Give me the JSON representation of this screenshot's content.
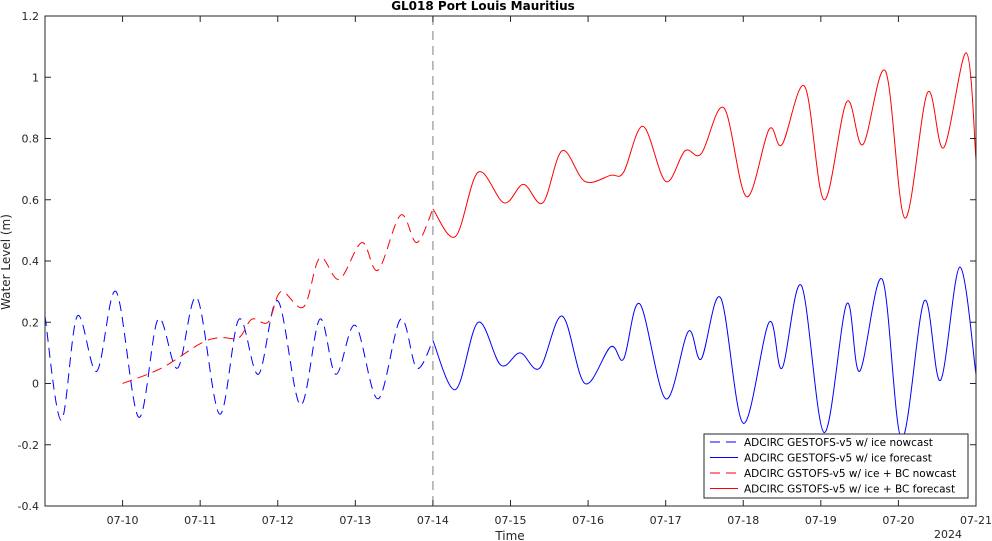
{
  "chart_data": {
    "type": "line",
    "title": "GL018 Port Louis Mauritius",
    "xlabel": "Time",
    "ylabel": "Water Level (m)",
    "year_label": "2024",
    "xlim": [
      "07-09 00:00",
      "07-21 00:00"
    ],
    "ylim": [
      -0.4,
      1.2
    ],
    "x_ticks": [
      "07-10",
      "07-11",
      "07-12",
      "07-13",
      "07-14",
      "07-15",
      "07-16",
      "07-17",
      "07-18",
      "07-19",
      "07-20",
      "07-21"
    ],
    "y_ticks": [
      "-0.4",
      "-0.2",
      "0",
      "0.2",
      "0.4",
      "0.6",
      "0.8",
      "1",
      "1.2"
    ],
    "nowcast_forecast_divider": "07-14 00:00",
    "grid": false,
    "legend_position": "bottom-right",
    "colors": {
      "blue": "#0000ff",
      "red": "#ff0000",
      "divider": "#808080",
      "axes": "#262626"
    },
    "series": [
      {
        "name": "ADCIRC GESTOFS-v5 w/ ice nowcast",
        "color": "#0000ff",
        "dash": "dashed",
        "points": [
          [
            "07-09 00:00",
            0.22
          ],
          [
            "07-09 05:00",
            -0.12
          ],
          [
            "07-09 10:00",
            0.22
          ],
          [
            "07-09 16:00",
            0.04
          ],
          [
            "07-09 22:00",
            0.3
          ],
          [
            "07-10 05:00",
            -0.11
          ],
          [
            "07-10 11:00",
            0.21
          ],
          [
            "07-10 17:00",
            0.05
          ],
          [
            "07-10 23:00",
            0.28
          ],
          [
            "07-11 06:00",
            -0.1
          ],
          [
            "07-11 12:00",
            0.21
          ],
          [
            "07-11 18:00",
            0.03
          ],
          [
            "07-12 00:00",
            0.27
          ],
          [
            "07-12 07:00",
            -0.07
          ],
          [
            "07-12 13:00",
            0.21
          ],
          [
            "07-12 18:00",
            0.03
          ],
          [
            "07-13 00:00",
            0.19
          ],
          [
            "07-13 07:00",
            -0.05
          ],
          [
            "07-13 14:00",
            0.21
          ],
          [
            "07-13 19:00",
            0.05
          ],
          [
            "07-14 00:00",
            0.14
          ]
        ]
      },
      {
        "name": "ADCIRC GESTOFS-v5 w/ ice forecast",
        "color": "#0000ff",
        "dash": "solid",
        "points": [
          [
            "07-14 00:00",
            0.14
          ],
          [
            "07-14 07:00",
            -0.02
          ],
          [
            "07-14 14:00",
            0.2
          ],
          [
            "07-14 21:00",
            0.06
          ],
          [
            "07-15 03:00",
            0.1
          ],
          [
            "07-15 09:00",
            0.05
          ],
          [
            "07-15 16:00",
            0.22
          ],
          [
            "07-15 23:00",
            0.0
          ],
          [
            "07-16 07:00",
            0.12
          ],
          [
            "07-16 11:00",
            0.08
          ],
          [
            "07-16 16:00",
            0.26
          ],
          [
            "07-17 00:00",
            -0.05
          ],
          [
            "07-17 07:00",
            0.17
          ],
          [
            "07-17 11:00",
            0.08
          ],
          [
            "07-17 17:00",
            0.28
          ],
          [
            "07-18 00:00",
            -0.13
          ],
          [
            "07-18 08:00",
            0.2
          ],
          [
            "07-18 12:00",
            0.05
          ],
          [
            "07-18 18:00",
            0.32
          ],
          [
            "07-19 01:00",
            -0.16
          ],
          [
            "07-19 08:00",
            0.26
          ],
          [
            "07-19 12:00",
            0.04
          ],
          [
            "07-19 19:00",
            0.34
          ],
          [
            "07-20 01:00",
            -0.18
          ],
          [
            "07-20 08:00",
            0.27
          ],
          [
            "07-20 13:00",
            0.01
          ],
          [
            "07-20 19:00",
            0.38
          ],
          [
            "07-21 00:00",
            0.03
          ]
        ]
      },
      {
        "name": "ADCIRC GSTOFS-v5 w/ ice + BC nowcast",
        "color": "#ff0000",
        "dash": "dashed",
        "points": [
          [
            "07-10 00:00",
            0.0
          ],
          [
            "07-10 12:00",
            0.05
          ],
          [
            "07-11 00:00",
            0.13
          ],
          [
            "07-11 06:00",
            0.15
          ],
          [
            "07-11 12:00",
            0.15
          ],
          [
            "07-11 16:00",
            0.21
          ],
          [
            "07-11 21:00",
            0.2
          ],
          [
            "07-12 01:00",
            0.3
          ],
          [
            "07-12 08:00",
            0.25
          ],
          [
            "07-12 13:00",
            0.41
          ],
          [
            "07-12 19:00",
            0.34
          ],
          [
            "07-13 02:00",
            0.46
          ],
          [
            "07-13 07:00",
            0.37
          ],
          [
            "07-13 14:00",
            0.55
          ],
          [
            "07-13 19:00",
            0.46
          ],
          [
            "07-14 00:00",
            0.57
          ]
        ]
      },
      {
        "name": "ADCIRC GSTOFS-v5 w/ ice + BC forecast",
        "color": "#ff0000",
        "dash": "solid",
        "points": [
          [
            "07-14 00:00",
            0.57
          ],
          [
            "07-14 07:00",
            0.48
          ],
          [
            "07-14 14:00",
            0.69
          ],
          [
            "07-14 22:00",
            0.59
          ],
          [
            "07-15 04:00",
            0.65
          ],
          [
            "07-15 10:00",
            0.59
          ],
          [
            "07-15 16:00",
            0.76
          ],
          [
            "07-15 23:00",
            0.66
          ],
          [
            "07-16 07:00",
            0.68
          ],
          [
            "07-16 11:00",
            0.69
          ],
          [
            "07-16 17:00",
            0.84
          ],
          [
            "07-17 00:00",
            0.66
          ],
          [
            "07-17 06:00",
            0.76
          ],
          [
            "07-17 11:00",
            0.75
          ],
          [
            "07-17 18:00",
            0.9
          ],
          [
            "07-18 01:00",
            0.61
          ],
          [
            "07-18 08:00",
            0.83
          ],
          [
            "07-18 12:00",
            0.78
          ],
          [
            "07-18 19:00",
            0.97
          ],
          [
            "07-19 01:00",
            0.6
          ],
          [
            "07-19 08:00",
            0.92
          ],
          [
            "07-19 13:00",
            0.78
          ],
          [
            "07-19 20:00",
            1.02
          ],
          [
            "07-20 02:00",
            0.54
          ],
          [
            "07-20 09:00",
            0.95
          ],
          [
            "07-20 14:00",
            0.77
          ],
          [
            "07-20 21:00",
            1.08
          ],
          [
            "07-21 00:00",
            0.73
          ]
        ]
      }
    ]
  }
}
